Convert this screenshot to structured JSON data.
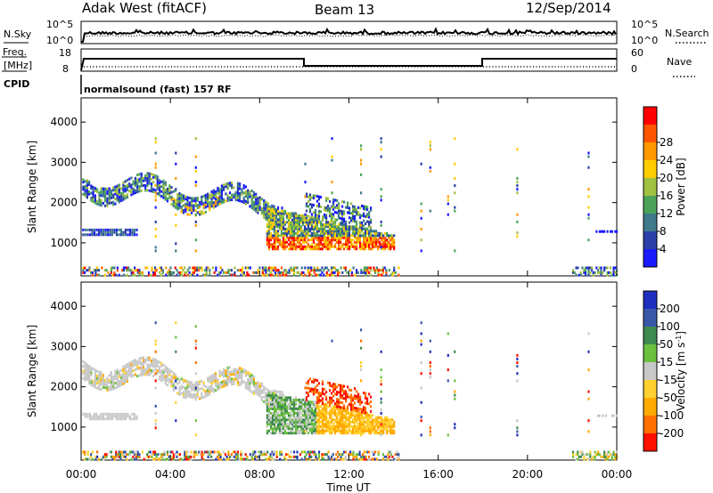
{
  "header": {
    "radar": "Adak West (fitACF)",
    "beam": "Beam 13",
    "date": "12/Sep/2014"
  },
  "noise_panel": {
    "left_label": "N.Sky",
    "right_label": "N.Search",
    "left_ticks": [
      "10^5",
      "10^0"
    ],
    "right_ticks": [
      "10^5",
      "10^0"
    ]
  },
  "freq_panel": {
    "left_label_line1": "Freq.",
    "left_label_line2": "[MHz]",
    "right_label": "Nave",
    "left_ticks": [
      "18",
      "8"
    ],
    "right_ticks": [
      "60",
      "0"
    ],
    "cpid_label": "CPID",
    "program": "normalsound (fast) 157 RF"
  },
  "chart_data": [
    {
      "type": "heatmap",
      "title": "",
      "parameter": "Power",
      "xlabel": "",
      "ylabel": "Slant Range [km]",
      "x_range_hours": [
        0,
        24
      ],
      "ylim": [
        180,
        4600
      ],
      "yticks": [
        1000,
        2000,
        3000,
        4000
      ],
      "colorbar": {
        "label": "Power [dB]",
        "ticks": [
          "4",
          "8",
          "12",
          "16",
          "20",
          "24",
          "28"
        ],
        "colors": [
          "#1a1aff",
          "#2a3fa8",
          "#3f7a8a",
          "#4ba35a",
          "#a0c040",
          "#ffcc00",
          "#ff9900",
          "#ff5500",
          "#ff0000"
        ]
      },
      "features": [
        {
          "t_start": 0.1,
          "t_end": 9.0,
          "range_km": [
            1900,
            3000
          ],
          "level": "moderate power, wavy band"
        },
        {
          "t_start": 0.1,
          "t_end": 2.5,
          "range_km": [
            1200,
            1300
          ],
          "level": "low power"
        },
        {
          "t_start": 8.2,
          "t_end": 14.0,
          "range_km": [
            800,
            2000
          ],
          "level": "high power near 1000 km"
        },
        {
          "t_start": 0.0,
          "t_end": 14.0,
          "range_km": [
            180,
            350
          ],
          "level": "scattered near range"
        },
        {
          "t_start": 22.0,
          "t_end": 24.0,
          "range_km": [
            180,
            1300
          ],
          "level": "scattered"
        }
      ]
    },
    {
      "type": "heatmap",
      "title": "",
      "parameter": "Velocity",
      "xlabel": "Time UT",
      "ylabel": "Slant Range [km]",
      "x_range_hours": [
        0,
        24
      ],
      "ylim": [
        180,
        4600
      ],
      "yticks": [
        1000,
        2000,
        3000,
        4000
      ],
      "xticks": [
        "00:00",
        "04:00",
        "08:00",
        "12:00",
        "16:00",
        "20:00",
        "00:00"
      ],
      "colorbar": {
        "label": "Velocity [m s^-1]",
        "ticks": [
          "200",
          "100",
          "50",
          "15",
          "-15",
          "-50",
          "-100",
          "-200"
        ],
        "colors": [
          "#1f2fbf",
          "#3a58a8",
          "#3f8a50",
          "#6cc040",
          "#c8c8c8",
          "#ffd030",
          "#ffaa00",
          "#ff7000",
          "#ff1000"
        ]
      },
      "features": [
        {
          "t_start": 0.1,
          "t_end": 9.0,
          "range_km": [
            1900,
            3000
          ],
          "level": "near zero (grey)"
        },
        {
          "t_start": 8.2,
          "t_end": 10.5,
          "range_km": [
            800,
            1500
          ],
          "level": "green, slightly positive"
        },
        {
          "t_start": 10.5,
          "t_end": 14.0,
          "range_km": [
            900,
            1700
          ],
          "level": "orange, -15 to -50"
        },
        {
          "t_start": 10.0,
          "t_end": 13.0,
          "range_km": [
            1700,
            2400
          ],
          "level": "red, below -200"
        }
      ]
    }
  ]
}
